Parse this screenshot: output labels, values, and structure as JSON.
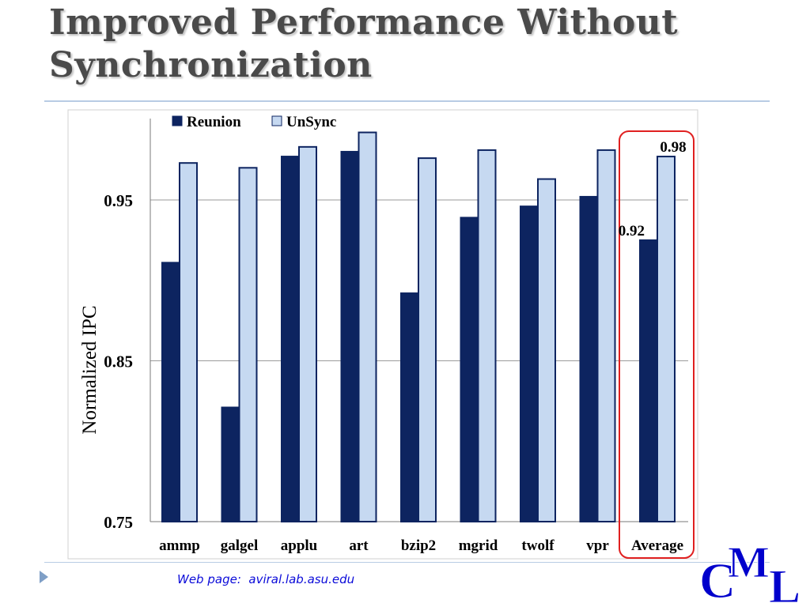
{
  "slide": {
    "title_line1": "Improved Performance Without",
    "title_line2": "Synchronization",
    "footer_label": "Web page:  aviral.lab.asu.edu"
  },
  "logo": {
    "letters": "CML",
    "color": "#0000cc",
    "icon": "cml-logo"
  },
  "colors": {
    "reunion": "#0d2460",
    "unsync": "#c6d9f1",
    "bar_border": "#0d2460",
    "highlight_box": "#e02020"
  },
  "chart_data": {
    "type": "bar",
    "categories": [
      "ammp",
      "galgel",
      "applu",
      "art",
      "bzip2",
      "mgrid",
      "twolf",
      "vpr",
      "Average"
    ],
    "series": [
      {
        "name": "Reunion",
        "values": [
          0.911,
          0.821,
          0.977,
          0.98,
          0.892,
          0.939,
          0.946,
          0.952,
          0.925
        ]
      },
      {
        "name": "UnSync",
        "values": [
          0.973,
          0.97,
          0.983,
          0.992,
          0.976,
          0.981,
          0.963,
          0.981,
          0.977
        ]
      }
    ],
    "ylabel": "Normalized IPC",
    "ylim": [
      0.75,
      0.99
    ],
    "yticks": [
      "0.75",
      "0.85",
      "0.95"
    ],
    "data_labels": {
      "Reunion": "0.92",
      "UnSync": "0.98"
    },
    "grid": true,
    "legend_position": "top-left",
    "highlight_category": "Average"
  }
}
